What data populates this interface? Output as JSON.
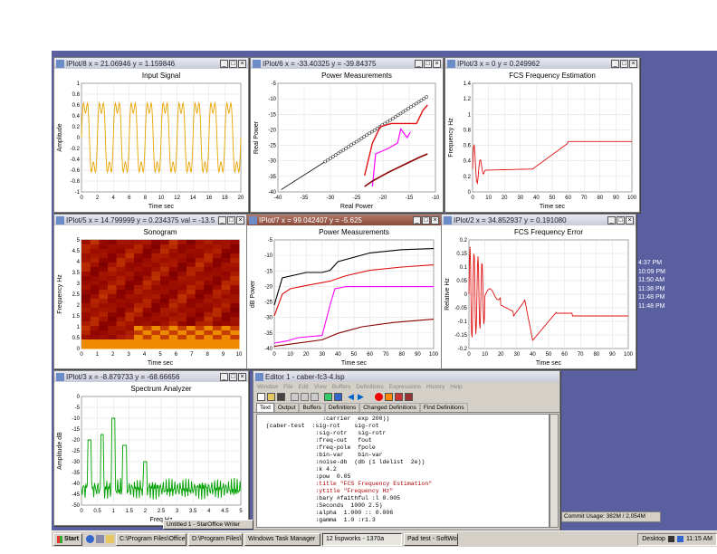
{
  "windows": {
    "input": {
      "title": "IPlot/8  x = 21.06946  y = 1.159846",
      "plot_title": "Input Signal",
      "xlabel": "Time sec",
      "ylabel": "Amplitude",
      "xticks": [
        "0",
        "2",
        "4",
        "6",
        "8",
        "10",
        "12",
        "14",
        "16",
        "18",
        "20"
      ],
      "yticks": [
        "1",
        "0.8",
        "0.6",
        "0.4",
        "0.2",
        "0",
        "-0.2",
        "-0.4",
        "-0.6",
        "-0.8",
        "-1"
      ]
    },
    "power1": {
      "title": "IPlot/6  x = -33.40325  y = -39.84375",
      "plot_title": "Power Measurements",
      "xlabel": "Real Power",
      "ylabel": "Real Power",
      "xticks": [
        "-40",
        "-35",
        "-30",
        "-25",
        "-20",
        "-15",
        "-10"
      ],
      "yticks": [
        "-5",
        "-10",
        "-15",
        "-20",
        "-25",
        "-30",
        "-35",
        "-40"
      ]
    },
    "freqest": {
      "title": "IPlot/3  x = 0  y = 0.249962",
      "plot_title": "FCS Frequency Estimation",
      "xlabel": "Time sec",
      "ylabel": "Frequency Hz",
      "xticks": [
        "0",
        "10",
        "20",
        "30",
        "40",
        "50",
        "60",
        "70",
        "80",
        "90",
        "100"
      ],
      "yticks": [
        "1.4",
        "1.2",
        "1",
        "0.8",
        "0.6",
        "0.4",
        "0.2",
        "0"
      ]
    },
    "spectro": {
      "title": "IPlot/5  x = 14.799999  y = 0.234375  val = -13.5",
      "plot_title": "Sonogram",
      "xlabel": "Time sec",
      "ylabel": "Frequency Hz",
      "xticks": [
        "0",
        "1",
        "2",
        "3",
        "4",
        "5",
        "6",
        "7",
        "8",
        "9",
        "10"
      ],
      "yticks": [
        "5",
        "4.5",
        "4",
        "3.5",
        "3",
        "2.5",
        "2",
        "1.5",
        "1",
        "0.5",
        "0"
      ]
    },
    "power2": {
      "title": "IPlot/7  x = 99.042407  y = -5.625",
      "plot_title": "Power Measurements",
      "xlabel": "Time sec",
      "ylabel": "dB Power",
      "xticks": [
        "0",
        "10",
        "20",
        "30",
        "40",
        "50",
        "60",
        "70",
        "80",
        "90",
        "100"
      ],
      "yticks": [
        "-5",
        "-10",
        "-15",
        "-20",
        "-25",
        "-30",
        "-35",
        "-40"
      ]
    },
    "ferr": {
      "title": "IPlot/2  x = 34.852937  y = 0.191080",
      "plot_title": "FCS Frequency Error",
      "xlabel": "Time sec",
      "ylabel": "Relative Hz",
      "xticks": [
        "0",
        "10",
        "20",
        "30",
        "40",
        "50",
        "60",
        "70",
        "80",
        "90",
        "100"
      ],
      "yticks": [
        "0.2",
        "0.15",
        "0.1",
        "0.05",
        "0",
        "-0.05",
        "-0.1",
        "-0.15",
        "-0.2"
      ]
    },
    "spec": {
      "title": "IPlot/3  x = -8.879733  y = -68.66656",
      "plot_title": "Spectrum Analyzer",
      "xlabel": "Freq Hz",
      "ylabel": "Amplitude dB",
      "xticks": [
        "0",
        "0.5",
        "1",
        "1.5",
        "2",
        "2.5",
        "3",
        "3.5",
        "4",
        "4.5",
        "5"
      ],
      "yticks": [
        "0",
        "-5",
        "-10",
        "-15",
        "-20",
        "-25",
        "-30",
        "-35",
        "-40",
        "-45",
        "-50"
      ]
    },
    "editor": {
      "title": "Editor 1 - caber-fc3-4.lsp",
      "menus": [
        "Window",
        "File",
        "Edit",
        "View",
        "Buffers",
        "Definitions",
        "Expressions",
        "History",
        "Help"
      ],
      "tabs": [
        "Text",
        "Output",
        "Buffers",
        "Definitions",
        "Changed Definitions",
        "Find Definitions"
      ],
      "lines": [
        "                  :carrier  exp 200))",
        "  (caber-test  :sig-rot    sig-rot",
        "                :sig-rotr   sig-rotr",
        "                :freq-out   fout",
        "                :freq-pole  fpole",
        "                :bin-var    bin-var",
        "                :noise-db  (db (1 ldelist  2e))",
        "                :k 4.2",
        "                :pow  0.05",
        "                :title \"FCS Frequency Estimation\"",
        "                :ytitle \"Frequency Hz\"",
        "                :bary #faithful :l 0.005",
        "                :Seconds  1000 2.5)",
        "",
        "                :alpha  1.000 :: 0.006",
        "                :gamma  1.0 :r1.3"
      ]
    },
    "timelist": {
      "times": [
        "4:37 PM",
        "10:09 PM",
        "11:50 AM",
        "11:38 PM",
        "11:48 PM",
        "11:48 PM"
      ],
      "status": "Commit Usage: 382M / 2,054M"
    }
  },
  "taskbar": {
    "start": "Start",
    "buttons": [
      "C:\\Program Files\\Office",
      "D:\\Program Files\\Office",
      "Windows Task Manager",
      "12 lispworks - 1370a",
      "Pad test - SoftWord",
      "Untitled 1 - StarOffice Writer"
    ],
    "tray_label": "Desktop",
    "clock": "11:15 AM"
  },
  "colors": {
    "desktop": "#5a5fa0",
    "signal": "#e8a400",
    "spec": "#00a000",
    "red": "#e01010",
    "darkred": "#8a0000",
    "magenta": "#ff00ff",
    "black": "#000000"
  }
}
